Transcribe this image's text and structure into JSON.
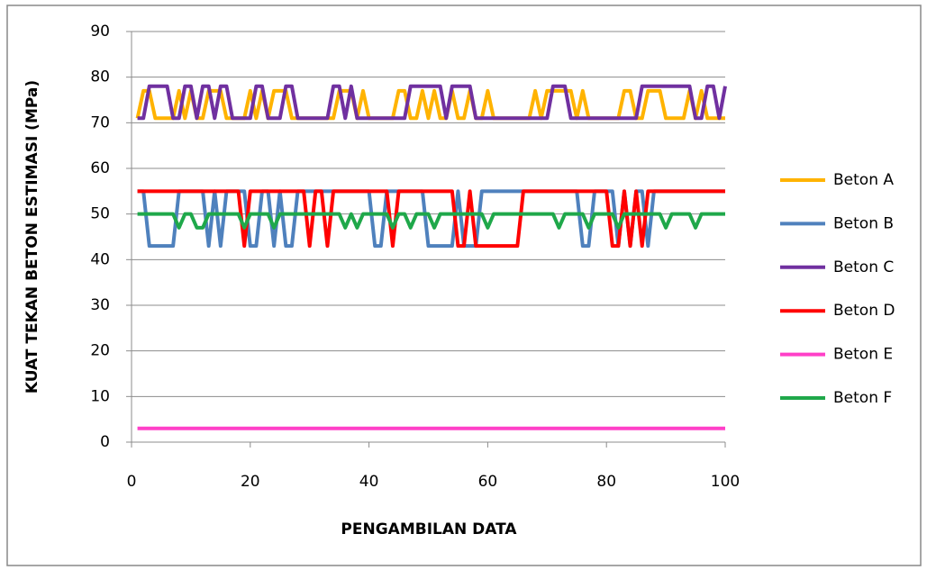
{
  "chart_data": {
    "type": "line",
    "y_label": "KUAT TEKAN BETON ESTIMASI (MPa)",
    "x_label": "PENGAMBILAN DATA",
    "xlim": [
      0,
      100
    ],
    "xticks": [
      0,
      20,
      40,
      60,
      80,
      100
    ],
    "ylim": [
      0,
      90
    ],
    "yticks": [
      0,
      10,
      20,
      30,
      40,
      50,
      60,
      70,
      80,
      90
    ],
    "grid": true,
    "legend": "right",
    "x": [
      1,
      2,
      3,
      4,
      5,
      6,
      7,
      8,
      9,
      10,
      11,
      12,
      13,
      14,
      15,
      16,
      17,
      18,
      19,
      20,
      21,
      22,
      23,
      24,
      25,
      26,
      27,
      28,
      29,
      30,
      31,
      32,
      33,
      34,
      35,
      36,
      37,
      38,
      39,
      40,
      41,
      42,
      43,
      44,
      45,
      46,
      47,
      48,
      49,
      50,
      51,
      52,
      53,
      54,
      55,
      56,
      57,
      58,
      59,
      60,
      61,
      62,
      63,
      64,
      65,
      66,
      67,
      68,
      69,
      70,
      71,
      72,
      73,
      74,
      75,
      76,
      77,
      78,
      79,
      80,
      81,
      82,
      83,
      84,
      85,
      86,
      87,
      88,
      89,
      90,
      91,
      92,
      93,
      94,
      95,
      96,
      97,
      98,
      99,
      100
    ],
    "series": [
      {
        "name": "Beton A",
        "color": "#ffb300",
        "values": [
          71,
          77,
          77,
          71,
          71,
          71,
          71,
          77,
          71,
          77,
          71,
          71,
          77,
          77,
          77,
          71,
          71,
          71,
          71,
          77,
          71,
          77,
          71,
          77,
          77,
          77,
          71,
          71,
          71,
          71,
          71,
          71,
          71,
          71,
          77,
          77,
          77,
          71,
          77,
          71,
          71,
          71,
          71,
          71,
          77,
          77,
          71,
          71,
          77,
          71,
          77,
          71,
          71,
          77,
          71,
          71,
          77,
          71,
          71,
          77,
          71,
          71,
          71,
          71,
          71,
          71,
          71,
          77,
          71,
          77,
          77,
          77,
          77,
          77,
          71,
          77,
          71,
          71,
          71,
          71,
          71,
          71,
          77,
          77,
          71,
          71,
          77,
          77,
          77,
          71,
          71,
          71,
          71,
          77,
          71,
          77,
          71,
          71,
          71,
          71
        ]
      },
      {
        "name": "Beton B",
        "color": "#4f81bd",
        "values": [
          55,
          55,
          43,
          43,
          43,
          43,
          43,
          55,
          55,
          55,
          55,
          55,
          43,
          55,
          43,
          55,
          55,
          55,
          55,
          43,
          43,
          55,
          55,
          43,
          55,
          43,
          43,
          55,
          55,
          55,
          55,
          55,
          55,
          55,
          55,
          55,
          55,
          55,
          55,
          55,
          43,
          43,
          55,
          55,
          55,
          55,
          55,
          55,
          55,
          43,
          43,
          43,
          43,
          43,
          55,
          43,
          43,
          43,
          55,
          55,
          55,
          55,
          55,
          55,
          55,
          55,
          55,
          55,
          55,
          55,
          55,
          55,
          55,
          55,
          55,
          43,
          43,
          55,
          55,
          55,
          55,
          43,
          55,
          43,
          55,
          55,
          43,
          55,
          55,
          55,
          55,
          55,
          55,
          55,
          55,
          55,
          55,
          55,
          55,
          55
        ]
      },
      {
        "name": "Beton C",
        "color": "#7030a0",
        "values": [
          71,
          71,
          78,
          78,
          78,
          78,
          71,
          71,
          78,
          78,
          71,
          78,
          78,
          71,
          78,
          78,
          71,
          71,
          71,
          71,
          78,
          78,
          71,
          71,
          71,
          78,
          78,
          71,
          71,
          71,
          71,
          71,
          71,
          78,
          78,
          71,
          78,
          71,
          71,
          71,
          71,
          71,
          71,
          71,
          71,
          71,
          78,
          78,
          78,
          78,
          78,
          78,
          71,
          78,
          78,
          78,
          78,
          71,
          71,
          71,
          71,
          71,
          71,
          71,
          71,
          71,
          71,
          71,
          71,
          71,
          78,
          78,
          78,
          71,
          71,
          71,
          71,
          71,
          71,
          71,
          71,
          71,
          71,
          71,
          71,
          78,
          78,
          78,
          78,
          78,
          78,
          78,
          78,
          78,
          71,
          71,
          78,
          78,
          71,
          78
        ]
      },
      {
        "name": "Beton D",
        "color": "#ff0000",
        "values": [
          55,
          55,
          55,
          55,
          55,
          55,
          55,
          55,
          55,
          55,
          55,
          55,
          55,
          55,
          55,
          55,
          55,
          55,
          43,
          55,
          55,
          55,
          55,
          55,
          55,
          55,
          55,
          55,
          55,
          43,
          55,
          55,
          43,
          55,
          55,
          55,
          55,
          55,
          55,
          55,
          55,
          55,
          55,
          43,
          55,
          55,
          55,
          55,
          55,
          55,
          55,
          55,
          55,
          55,
          43,
          43,
          55,
          43,
          43,
          43,
          43,
          43,
          43,
          43,
          43,
          55,
          55,
          55,
          55,
          55,
          55,
          55,
          55,
          55,
          55,
          55,
          55,
          55,
          55,
          55,
          43,
          43,
          55,
          43,
          55,
          43,
          55,
          55,
          55,
          55,
          55,
          55,
          55,
          55,
          55,
          55,
          55,
          55,
          55,
          55
        ]
      },
      {
        "name": "Beton E",
        "color": "#ff40c8",
        "values": [
          3,
          3,
          3,
          3,
          3,
          3,
          3,
          3,
          3,
          3,
          3,
          3,
          3,
          3,
          3,
          3,
          3,
          3,
          3,
          3,
          3,
          3,
          3,
          3,
          3,
          3,
          3,
          3,
          3,
          3,
          3,
          3,
          3,
          3,
          3,
          3,
          3,
          3,
          3,
          3,
          3,
          3,
          3,
          3,
          3,
          3,
          3,
          3,
          3,
          3,
          3,
          3,
          3,
          3,
          3,
          3,
          3,
          3,
          3,
          3,
          3,
          3,
          3,
          3,
          3,
          3,
          3,
          3,
          3,
          3,
          3,
          3,
          3,
          3,
          3,
          3,
          3,
          3,
          3,
          3,
          3,
          3,
          3,
          3,
          3,
          3,
          3,
          3,
          3,
          3,
          3,
          3,
          3,
          3,
          3,
          3,
          3,
          3,
          3,
          3
        ]
      },
      {
        "name": "Beton F",
        "color": "#1fa84a",
        "values": [
          50,
          50,
          50,
          50,
          50,
          50,
          50,
          47,
          50,
          50,
          47,
          47,
          50,
          50,
          50,
          50,
          50,
          50,
          47,
          50,
          50,
          50,
          50,
          47,
          50,
          50,
          50,
          50,
          50,
          50,
          50,
          50,
          50,
          50,
          50,
          47,
          50,
          47,
          50,
          50,
          50,
          50,
          50,
          47,
          50,
          50,
          47,
          50,
          50,
          50,
          47,
          50,
          50,
          50,
          50,
          50,
          50,
          50,
          50,
          47,
          50,
          50,
          50,
          50,
          50,
          50,
          50,
          50,
          50,
          50,
          50,
          47,
          50,
          50,
          50,
          50,
          47,
          50,
          50,
          50,
          50,
          47,
          50,
          50,
          50,
          50,
          50,
          50,
          50,
          47,
          50,
          50,
          50,
          50,
          47,
          50,
          50,
          50,
          50,
          50
        ]
      }
    ]
  }
}
